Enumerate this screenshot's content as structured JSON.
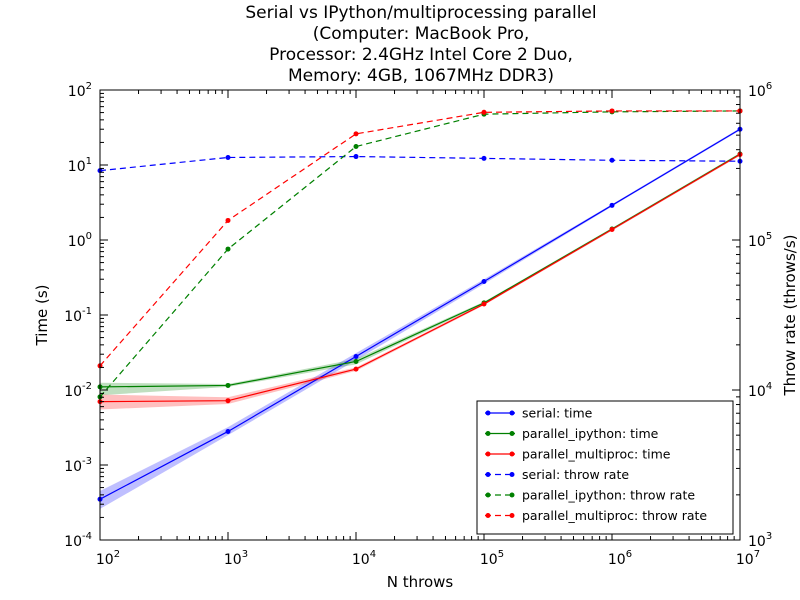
{
  "chart_data": {
    "type": "line",
    "title_lines": [
      "Serial vs IPython/multiprocessing parallel",
      "(Computer: MacBook Pro,",
      "Processor: 2.4GHz Intel Core 2 Duo,",
      "Memory: 4GB, 1067MHz DDR3)"
    ],
    "xlabel": "N throws",
    "ylabel": "Time (s)",
    "y2label": "Throw rate (throws/s)",
    "x_scale": "log",
    "y_scale": "log",
    "y2_scale": "log",
    "xlim": [
      100,
      10000000
    ],
    "ylim": [
      0.0001,
      100
    ],
    "y2lim": [
      1000,
      1000000
    ],
    "x_ticks": [
      {
        "base": "10",
        "exp": "2"
      },
      {
        "base": "10",
        "exp": "3"
      },
      {
        "base": "10",
        "exp": "4"
      },
      {
        "base": "10",
        "exp": "5"
      },
      {
        "base": "10",
        "exp": "6"
      },
      {
        "base": "10",
        "exp": "7"
      }
    ],
    "y_ticks": [
      {
        "base": "10",
        "exp": "-4"
      },
      {
        "base": "10",
        "exp": "-3"
      },
      {
        "base": "10",
        "exp": "-2"
      },
      {
        "base": "10",
        "exp": "-1"
      },
      {
        "base": "10",
        "exp": "0"
      },
      {
        "base": "10",
        "exp": "1"
      },
      {
        "base": "10",
        "exp": "2"
      }
    ],
    "y2_ticks": [
      {
        "base": "10",
        "exp": "3"
      },
      {
        "base": "10",
        "exp": "4"
      },
      {
        "base": "10",
        "exp": "5"
      },
      {
        "base": "10",
        "exp": "6"
      }
    ],
    "grid": false,
    "legend_position": "bottom-right",
    "x": [
      100,
      1000,
      10000,
      100000,
      1000000,
      10000000
    ],
    "series": [
      {
        "name": "serial: time",
        "axis": "left",
        "color": "#0000ff",
        "linestyle": "solid",
        "values": [
          0.00035,
          0.0028,
          0.028,
          0.28,
          2.9,
          30
        ],
        "band_low": [
          0.00026,
          0.0025,
          0.025,
          0.26,
          2.8,
          29
        ],
        "band_high": [
          0.00045,
          0.0032,
          0.031,
          0.3,
          3.0,
          31
        ]
      },
      {
        "name": "parallel_ipython: time",
        "axis": "left",
        "color": "#008000",
        "linestyle": "solid",
        "values": [
          0.011,
          0.0115,
          0.024,
          0.145,
          1.4,
          14
        ],
        "band_low": [
          0.0085,
          0.011,
          0.022,
          0.14,
          1.35,
          13.5
        ],
        "band_high": [
          0.0125,
          0.012,
          0.026,
          0.15,
          1.45,
          14.5
        ]
      },
      {
        "name": "parallel_multiproc: time",
        "axis": "left",
        "color": "#ff0000",
        "linestyle": "solid",
        "values": [
          0.007,
          0.0072,
          0.019,
          0.14,
          1.38,
          13.8
        ],
        "band_low": [
          0.0055,
          0.0065,
          0.018,
          0.135,
          1.33,
          13.3
        ],
        "band_high": [
          0.0087,
          0.008,
          0.02,
          0.145,
          1.43,
          14.3
        ]
      },
      {
        "name": "serial: throw rate",
        "axis": "right",
        "color": "#0000ff",
        "linestyle": "dashed",
        "values": [
          290000,
          355000,
          360000,
          350000,
          340000,
          335000
        ]
      },
      {
        "name": "parallel_ipython: throw rate",
        "axis": "right",
        "color": "#008000",
        "linestyle": "dashed",
        "values": [
          9000,
          87000,
          420000,
          690000,
          715000,
          725000
        ]
      },
      {
        "name": "parallel_multiproc: throw rate",
        "axis": "right",
        "color": "#ff0000",
        "linestyle": "dashed",
        "values": [
          14500,
          135000,
          510000,
          710000,
          725000,
          725000
        ]
      }
    ]
  }
}
